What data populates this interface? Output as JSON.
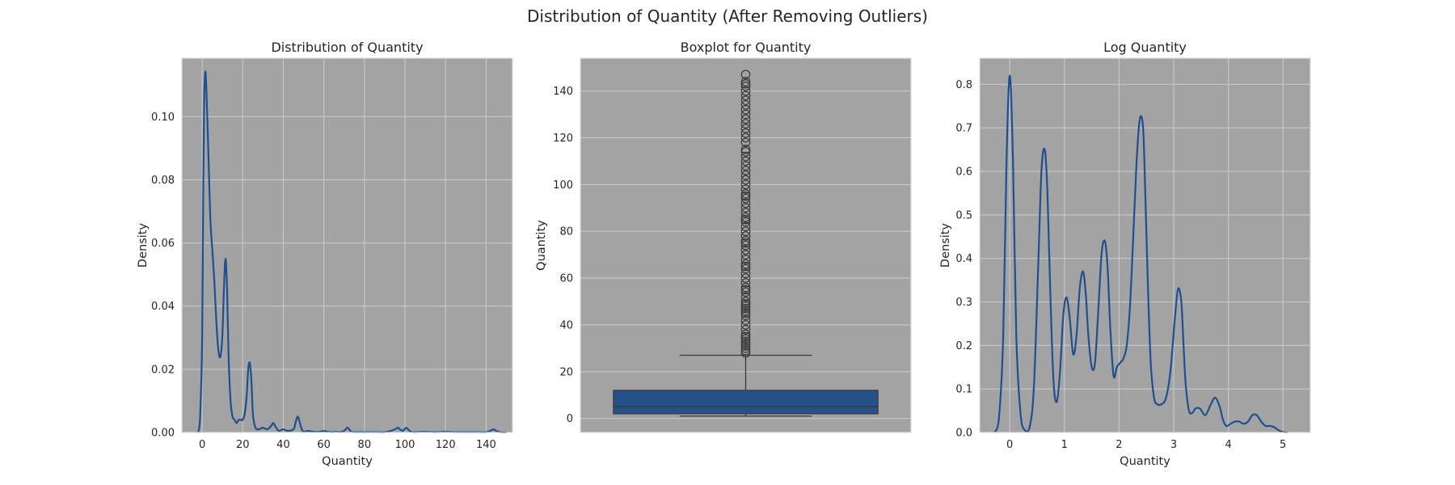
{
  "suptitle": "Distribution of Quantity (After Removing Outliers)",
  "colors": {
    "panel_bg": "#a3a3a3",
    "grid": "#c8c8c8",
    "line": "#1f4f8f",
    "box": "#245189",
    "ink": "#3a3a3a"
  },
  "chart_data": [
    {
      "type": "line",
      "title": "Distribution of Quantity",
      "xlabel": "Quantity",
      "ylabel": "Density",
      "xlim": [
        -10,
        153
      ],
      "ylim": [
        0,
        0.1185
      ],
      "xticks": [
        0,
        20,
        40,
        60,
        80,
        100,
        120,
        140
      ],
      "yticks": [
        0.0,
        0.02,
        0.04,
        0.06,
        0.08,
        0.1
      ],
      "ytick_format": 2,
      "grid": true,
      "series": [
        {
          "x": [
            -2,
            -1,
            0,
            0.5,
            1,
            1.5,
            2,
            3,
            4,
            5,
            6,
            7,
            8,
            9,
            10,
            10.7,
            11.5,
            12.3,
            13,
            14,
            15,
            16,
            17,
            18,
            19,
            20,
            21,
            22,
            22.7,
            23.5,
            24.3,
            25,
            26,
            27,
            28,
            30,
            32,
            34,
            35,
            36,
            37,
            38,
            40,
            42,
            45,
            46,
            47,
            47.8,
            48.6,
            49.5,
            50.5,
            52,
            55,
            58,
            60,
            62,
            64,
            66,
            68,
            70,
            71.5,
            72.5,
            73.5,
            75,
            80,
            85,
            90,
            93,
            95,
            96.5,
            97.5,
            99,
            100.5,
            101.5,
            103,
            105,
            110,
            115,
            120,
            125,
            130,
            135,
            140,
            142,
            143.5,
            145,
            147,
            150
          ],
          "y": [
            0.0,
            0.005,
            0.03,
            0.075,
            0.105,
            0.114,
            0.11,
            0.09,
            0.068,
            0.058,
            0.048,
            0.035,
            0.026,
            0.024,
            0.031,
            0.045,
            0.055,
            0.045,
            0.025,
            0.01,
            0.005,
            0.004,
            0.003,
            0.004,
            0.004,
            0.004,
            0.006,
            0.012,
            0.02,
            0.022,
            0.016,
            0.006,
            0.002,
            0.001,
            0.001,
            0.0015,
            0.001,
            0.002,
            0.003,
            0.002,
            0.001,
            0.0005,
            0.001,
            0.0005,
            0.001,
            0.003,
            0.005,
            0.004,
            0.002,
            0.0005,
            0.0002,
            0.0005,
            0.0002,
            0.0002,
            0.0005,
            0.0002,
            0.0001,
            0.0002,
            0.0001,
            0.0005,
            0.0015,
            0.001,
            0.0002,
            0.0001,
            0.0001,
            0.0001,
            0.0001,
            0.0005,
            0.001,
            0.0015,
            0.001,
            0.0005,
            0.0015,
            0.001,
            0.0002,
            0.0001,
            0.0002,
            0.0001,
            0.0002,
            0.0001,
            0.0001,
            0.0001,
            0.0001,
            0.0005,
            0.001,
            0.0005,
            0.0001,
            0.0
          ]
        }
      ]
    },
    {
      "type": "box",
      "title": "Boxplot for Quantity",
      "xlabel": "",
      "ylabel": "Quantity",
      "ylim": [
        -6,
        154
      ],
      "yticks": [
        0,
        20,
        40,
        60,
        80,
        100,
        120,
        140
      ],
      "ytick_format": 0,
      "grid": true,
      "box": {
        "whisker_low": 1,
        "q1": 2,
        "median": 5,
        "q3": 12,
        "whisker_high": 27
      },
      "outliers": [
        28,
        29,
        30,
        31,
        32,
        33,
        34,
        35,
        36,
        38,
        40,
        42,
        44,
        45,
        46,
        47,
        48,
        49,
        50,
        52,
        54,
        55,
        56,
        58,
        60,
        62,
        64,
        65,
        66,
        68,
        70,
        72,
        74,
        75,
        76,
        78,
        80,
        82,
        84,
        85,
        86,
        88,
        90,
        92,
        94,
        95,
        96,
        98,
        100,
        102,
        104,
        106,
        108,
        110,
        112,
        114,
        115,
        118,
        120,
        122,
        124,
        126,
        128,
        130,
        132,
        134,
        136,
        138,
        140,
        142,
        143,
        144,
        147
      ]
    },
    {
      "type": "line",
      "title": "Log Quantity",
      "xlabel": "Quantity",
      "ylabel": "Density",
      "xlim": [
        -0.55,
        5.5
      ],
      "ylim": [
        0,
        0.86
      ],
      "xticks": [
        0,
        1,
        2,
        3,
        4,
        5
      ],
      "yticks": [
        0.0,
        0.1,
        0.2,
        0.3,
        0.4,
        0.5,
        0.6,
        0.7,
        0.8
      ],
      "ytick_format": 1,
      "grid": true,
      "series": [
        {
          "x": [
            -0.28,
            -0.2,
            -0.12,
            -0.06,
            0,
            0.06,
            0.12,
            0.2,
            0.28,
            0.36,
            0.44,
            0.52,
            0.58,
            0.64,
            0.69,
            0.74,
            0.8,
            0.86,
            0.92,
            0.98,
            1.04,
            1.1,
            1.16,
            1.22,
            1.28,
            1.34,
            1.39,
            1.44,
            1.5,
            1.56,
            1.62,
            1.68,
            1.74,
            1.79,
            1.84,
            1.9,
            1.96,
            2.02,
            2.08,
            2.14,
            2.2,
            2.26,
            2.32,
            2.38,
            2.44,
            2.48,
            2.53,
            2.58,
            2.64,
            2.7,
            2.78,
            2.86,
            2.94,
            3.02,
            3.08,
            3.14,
            3.18,
            3.22,
            3.28,
            3.34,
            3.4,
            3.48,
            3.58,
            3.68,
            3.76,
            3.84,
            3.9,
            3.96,
            4.04,
            4.12,
            4.2,
            4.28,
            4.36,
            4.44,
            4.52,
            4.6,
            4.68,
            4.76,
            4.84,
            4.92,
            5.0,
            5.08
          ],
          "y": [
            0.0,
            0.03,
            0.22,
            0.62,
            0.82,
            0.62,
            0.22,
            0.04,
            0.005,
            0.01,
            0.1,
            0.38,
            0.6,
            0.65,
            0.55,
            0.33,
            0.12,
            0.07,
            0.14,
            0.27,
            0.31,
            0.26,
            0.18,
            0.22,
            0.33,
            0.37,
            0.32,
            0.22,
            0.15,
            0.16,
            0.28,
            0.41,
            0.44,
            0.38,
            0.24,
            0.13,
            0.15,
            0.16,
            0.17,
            0.2,
            0.29,
            0.45,
            0.62,
            0.72,
            0.7,
            0.55,
            0.33,
            0.16,
            0.08,
            0.065,
            0.065,
            0.08,
            0.14,
            0.26,
            0.33,
            0.3,
            0.2,
            0.11,
            0.05,
            0.045,
            0.055,
            0.055,
            0.04,
            0.065,
            0.08,
            0.06,
            0.03,
            0.015,
            0.02,
            0.025,
            0.025,
            0.02,
            0.025,
            0.04,
            0.04,
            0.025,
            0.015,
            0.015,
            0.012,
            0.005,
            0.001,
            0.0
          ]
        }
      ]
    }
  ]
}
